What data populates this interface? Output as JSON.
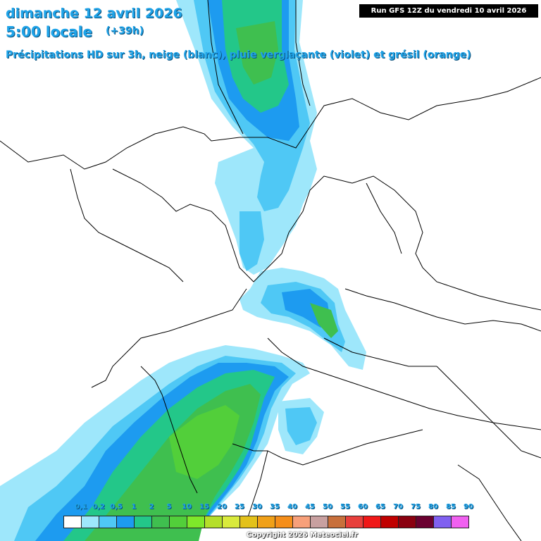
{
  "header": {
    "date": "dimanche 12 avril 2026",
    "time": "5:00 locale",
    "offset": "(+39h)",
    "subtitle": "Précipitations HD sur 3h, neige (blanc), pluie verglaçante (violet) et grésil (orange)"
  },
  "run": "Run GFS 12Z du vendredi 10 avril 2026",
  "legend": {
    "labels": [
      "0,1",
      "0,2",
      "0,5",
      "1",
      "2",
      "5",
      "10",
      "15",
      "20",
      "25",
      "30",
      "35",
      "40",
      "45",
      "50",
      "55",
      "60",
      "65",
      "70",
      "75",
      "80",
      "85",
      "90"
    ],
    "colors": [
      "#ffffff",
      "#9ee7fb",
      "#4fc8f5",
      "#1d9bf0",
      "#23c789",
      "#3fbf4f",
      "#52cf3a",
      "#7ee82a",
      "#b5df2a",
      "#d9ea3c",
      "#e3c11a",
      "#f0a018",
      "#f58e1a",
      "#f7a07a",
      "#c8a0a0",
      "#c8703c",
      "#e8403c",
      "#f01818",
      "#c00000",
      "#8a0010",
      "#6a0030",
      "#8060f0",
      "#f060f0"
    ]
  },
  "copyright": "Copyright 2026 Meteociel.fr"
}
